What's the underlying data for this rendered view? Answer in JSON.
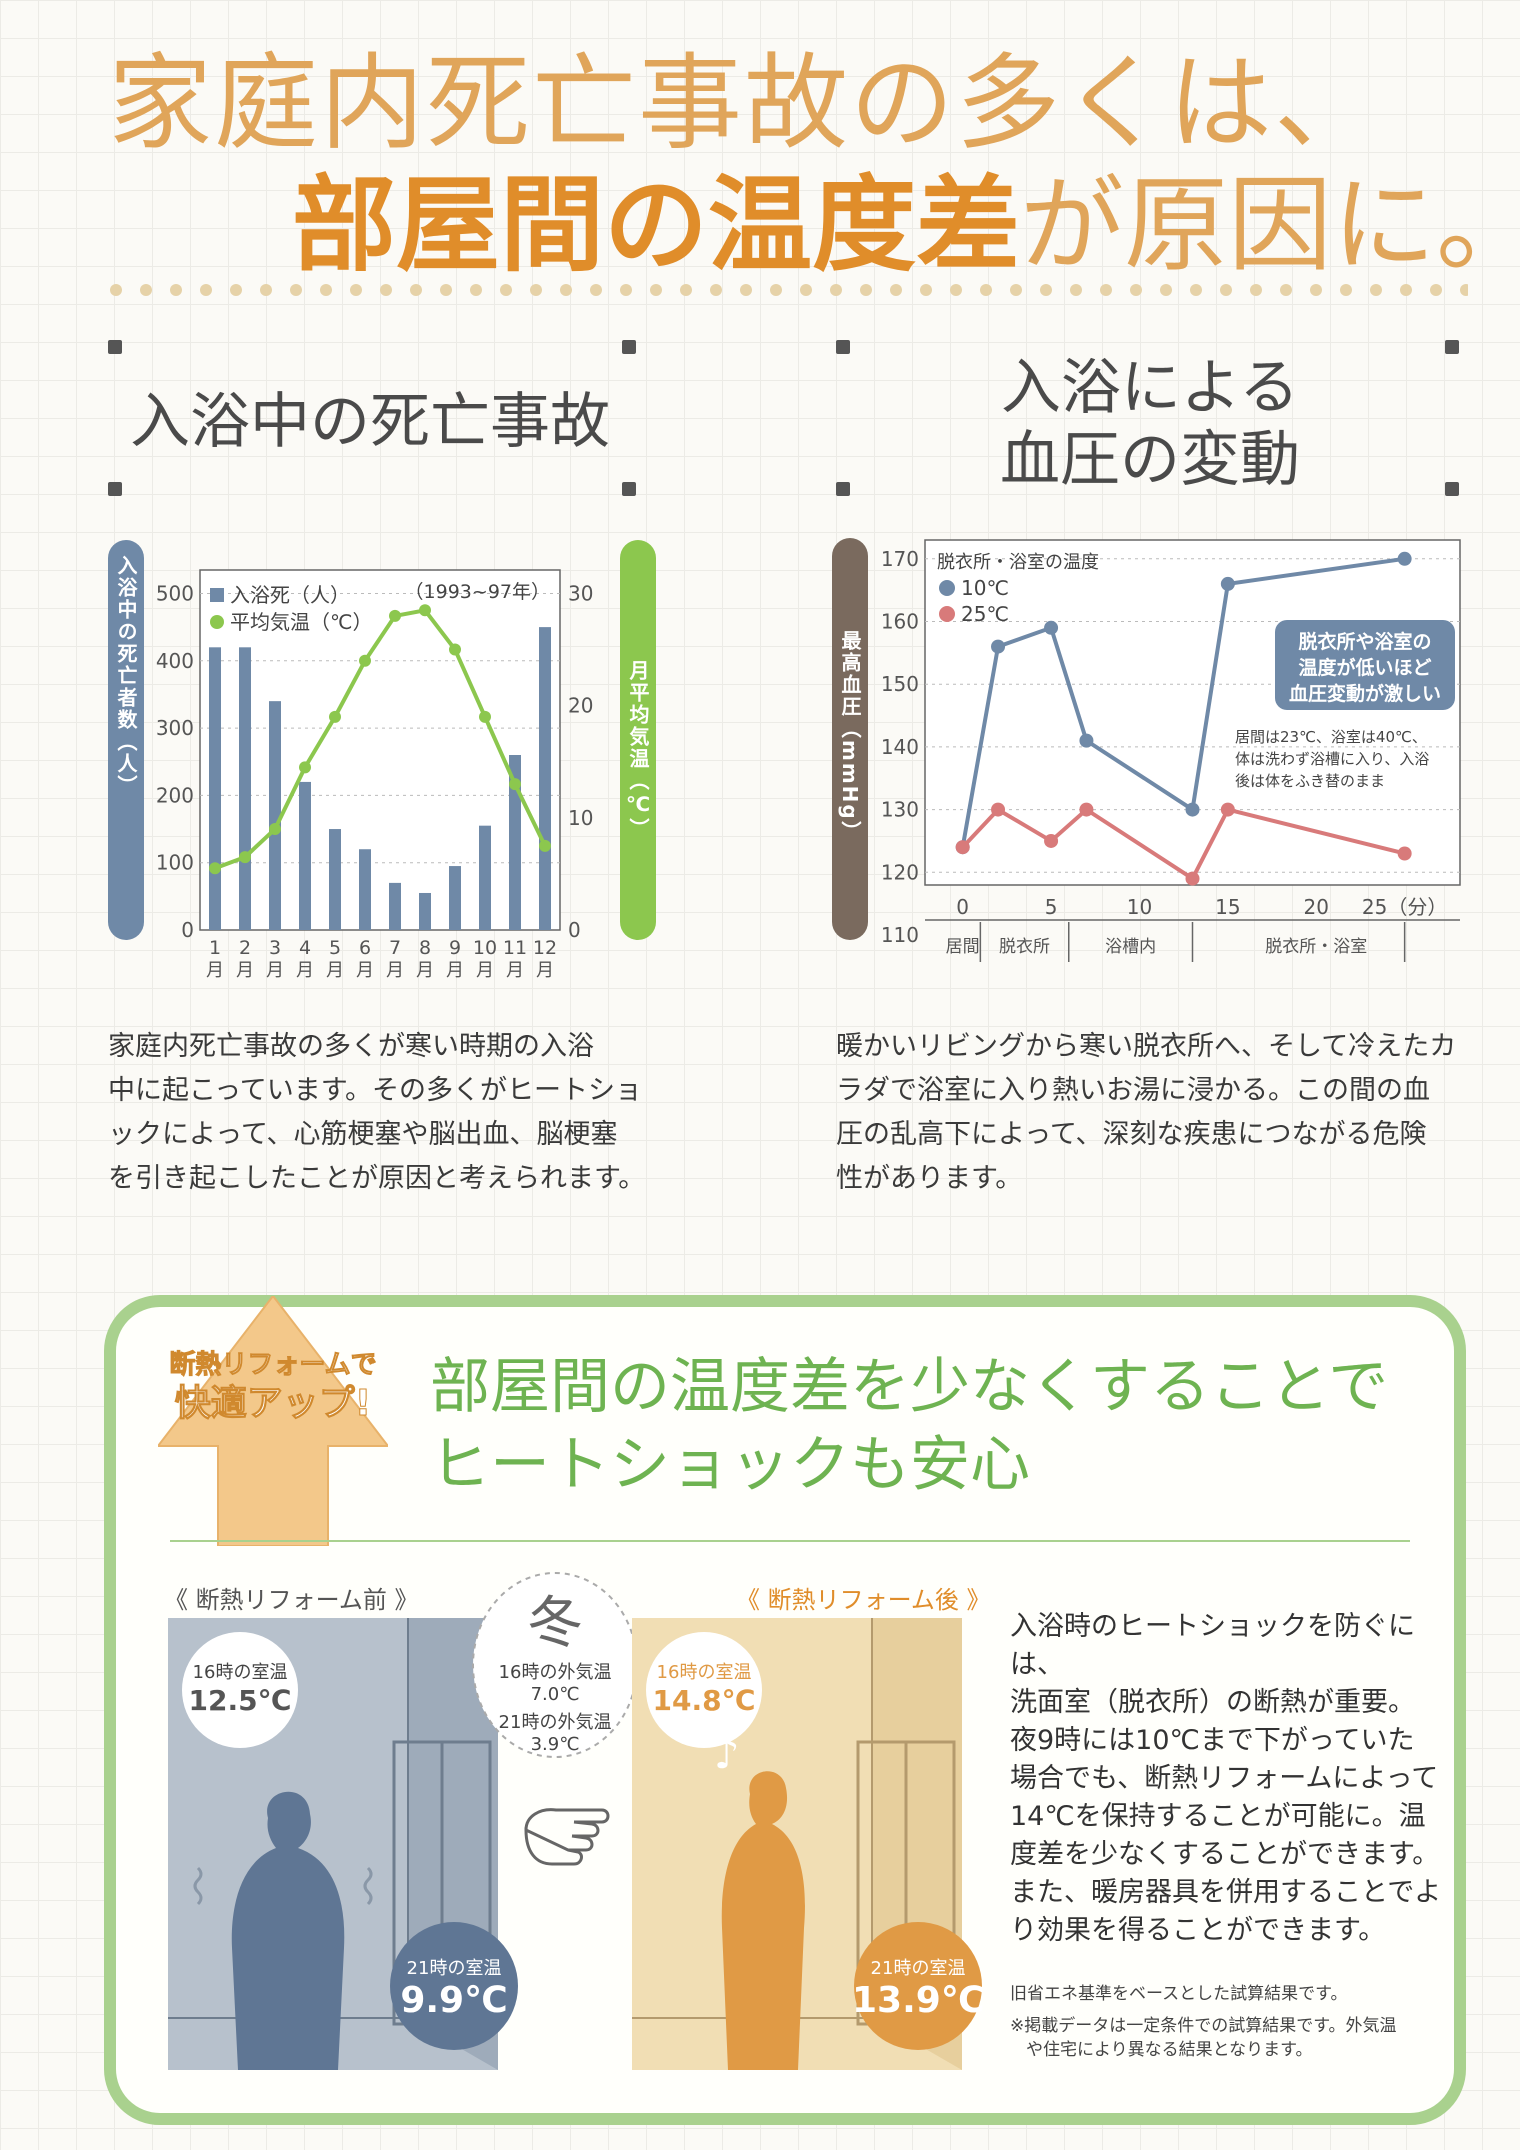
{
  "headline": {
    "line1": "家庭内死亡事故の多くは、",
    "line2_bold": "部屋間の温度差",
    "line2_rest": "が原因に。"
  },
  "left_section": {
    "title": "入浴中の死亡事故",
    "left_axis_label": "入浴中の死亡者数（人）",
    "right_axis_label": "月平均気温（℃）",
    "body": [
      "家庭内死亡事故の多くが寒い時期の入浴",
      "中に起こっています。その多くがヒートショ",
      "ックによって、心筋梗塞や脳出血、脳梗塞",
      "を引き起こしたことが原因と考えられます。"
    ]
  },
  "right_section": {
    "title_line1": "入浴による",
    "title_line2": "血圧の変動",
    "left_axis_label": "最高血圧（mmHg）",
    "body": [
      "暖かいリビングから寒い脱衣所へ、そして冷えたカ",
      "ラダで浴室に入り熱いお湯に浸かる。この間の血",
      "圧の乱高下によって、深刻な疾患につながる危険",
      "性があります。"
    ]
  },
  "chart_data": [
    {
      "type": "bar",
      "legend": [
        "入浴死（人）",
        "平均気温（℃）"
      ],
      "period": "（1993~97年）",
      "categories": [
        "1月",
        "2月",
        "3月",
        "4月",
        "5月",
        "6月",
        "7月",
        "8月",
        "9月",
        "10月",
        "11月",
        "12月"
      ],
      "series": [
        {
          "name": "入浴死（人）",
          "type": "bar",
          "axis": "left",
          "values": [
            420,
            420,
            340,
            220,
            150,
            120,
            70,
            55,
            95,
            155,
            260,
            450
          ]
        },
        {
          "name": "平均気温（℃）",
          "type": "line",
          "axis": "right",
          "values": [
            5.5,
            6.5,
            9,
            14.5,
            19,
            24,
            28,
            28.5,
            25,
            19,
            13,
            7.5
          ]
        }
      ],
      "yticks_left": [
        0,
        100,
        200,
        300,
        400,
        500
      ],
      "yticks_right": [
        0,
        10,
        20,
        30
      ],
      "ylim_left": [
        0,
        520
      ],
      "ylim_right": [
        0,
        31.2
      ],
      "colors": {
        "bar": "#6f89a7",
        "line": "#8cc74e"
      }
    },
    {
      "type": "line",
      "legend_title": "脱衣所・浴室の温度",
      "x": [
        0,
        2,
        5,
        7,
        13,
        15,
        25
      ],
      "xticks": [
        0,
        5,
        10,
        15,
        20,
        25
      ],
      "x_unit_label": "25（分）",
      "series": [
        {
          "name": "10℃",
          "values": [
            124,
            156,
            159,
            141,
            130,
            166,
            170
          ],
          "color": "#6f89a7"
        },
        {
          "name": "25℃",
          "values": [
            124,
            130,
            125,
            130,
            119,
            130,
            123
          ],
          "color": "#d87a7a"
        }
      ],
      "yticks": [
        110,
        120,
        130,
        140,
        150,
        160,
        170
      ],
      "ylim": [
        110,
        173
      ],
      "xlim": [
        -1,
        27
      ],
      "phases": [
        "居間",
        "脱衣所",
        "浴槽内",
        "脱衣所・浴室"
      ],
      "callout": [
        "脱衣所や浴室の",
        "温度が低いほど",
        "血圧変動が激しい"
      ],
      "note": [
        "居間は23℃、浴室は40℃、",
        "体は洗わず浴槽に入り、入浴",
        "後は体をふき替のまま"
      ]
    }
  ],
  "green_section": {
    "badge_line1": "断熱リフォームで",
    "badge_line2": "快適アップ!",
    "headline_line1": "部屋間の温度差を少なくすることで",
    "headline_line2": "ヒートショックも安心",
    "before_caption": "《 断熱リフォーム前 》",
    "after_caption": "《 断熱リフォーム後 》",
    "winter": "冬",
    "outside_16_label": "16時の外気温",
    "outside_16_value": "7.0℃",
    "outside_21_label": "21時の外気温",
    "outside_21_value": "3.9℃",
    "before_16_label": "16時の室温",
    "before_16_value": "12.5℃",
    "before_21_label": "21時の室温",
    "before_21_value": "9.9℃",
    "after_16_label": "16時の室温",
    "after_16_value": "14.8℃",
    "after_21_label": "21時の室温",
    "after_21_value": "13.9℃",
    "body": [
      "入浴時のヒートショックを防ぐには、",
      "洗面室（脱衣所）の断熱が重要。",
      "夜9時には10℃まで下がっていた",
      "場合でも、断熱リフォームによって",
      "14℃を保持することが可能に。温",
      "度差を少なくすることができます。",
      "また、暖房器具を併用することでよ",
      "り効果を得ることができます。"
    ],
    "note1": "旧省エネ基準をベースとした試算結果です。",
    "note2": [
      "※掲載データは一定条件での試算結果です。外気温",
      "や住宅により異なる結果となります。"
    ]
  }
}
